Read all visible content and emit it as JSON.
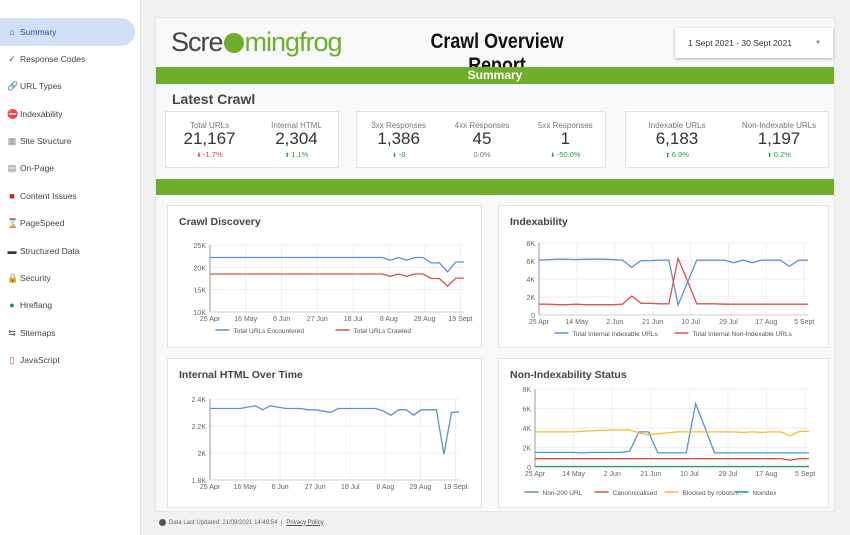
{
  "sidebar": {
    "items": [
      {
        "label": "Summary",
        "icon": "home-icon",
        "glyph": "⌂",
        "color": "#2a4f9e",
        "active": true
      },
      {
        "label": "Response Codes",
        "icon": "check-icon",
        "glyph": "✓",
        "color": "#555"
      },
      {
        "label": "URL Types",
        "icon": "link-icon",
        "glyph": "🔗",
        "color": "#333"
      },
      {
        "label": "Indexability",
        "icon": "no-entry-icon",
        "glyph": "⛔",
        "color": "#d33"
      },
      {
        "label": "Site Structure",
        "icon": "structure-icon",
        "glyph": "▦",
        "color": "#888"
      },
      {
        "label": "On-Page",
        "icon": "page-icon",
        "glyph": "▤",
        "color": "#777"
      },
      {
        "label": "Content Issues",
        "icon": "book-icon",
        "glyph": "■",
        "color": "#c22"
      },
      {
        "label": "PageSpeed",
        "icon": "hourglass-icon",
        "glyph": "⌛",
        "color": "#b55"
      },
      {
        "label": "Structured Data",
        "icon": "laptop-icon",
        "glyph": "▬",
        "color": "#333"
      },
      {
        "label": "Security",
        "icon": "lock-icon",
        "glyph": "🔒",
        "color": "#c90"
      },
      {
        "label": "Hreflang",
        "icon": "globe-icon",
        "glyph": "●",
        "color": "#1a8a6a"
      },
      {
        "label": "Sitemaps",
        "icon": "sitemap-icon",
        "glyph": "⇆",
        "color": "#666"
      },
      {
        "label": "JavaScript",
        "icon": "scroll-icon",
        "glyph": "▯",
        "color": "#a55"
      }
    ]
  },
  "header": {
    "logo": "Screamingfrog",
    "title": "Crawl Overview Report",
    "date_range": "1 Sept 2021 - 30 Sept 2021"
  },
  "summary_bar": "Summary",
  "latest_crawl": {
    "heading": "Latest Crawl",
    "groups": [
      [
        {
          "label": "Total URLs",
          "value": "21,167",
          "delta": "-1.7%",
          "dir": "down"
        },
        {
          "label": "Internal HTML",
          "value": "2,304",
          "delta": "1.1%",
          "dir": "up"
        }
      ],
      [
        {
          "label": "3xx Responses",
          "value": "1,386",
          "delta": "-8",
          "dir": "down-good"
        },
        {
          "label": "4xx Responses",
          "value": "45",
          "delta": "0.0%",
          "dir": "flat"
        },
        {
          "label": "5xx Responses",
          "value": "1",
          "delta": "-50.0%",
          "dir": "down-good"
        }
      ],
      [
        {
          "label": "Indexable URLs",
          "value": "6,183",
          "delta": "6.9%",
          "dir": "up"
        },
        {
          "label": "Non-Indexable URLs",
          "value": "1,197",
          "delta": "0.2%",
          "dir": "up"
        }
      ]
    ]
  },
  "colors": {
    "green": "#6fae2b",
    "blue": "#5b8fd6",
    "red": "#d9534f",
    "yellow": "#f2bf2e",
    "teal": "#1e9e6e"
  },
  "chart_data": [
    {
      "title": "Crawl Discovery",
      "type": "line",
      "ylim": [
        10000,
        25000
      ],
      "y_ticks": [
        "10K",
        "15K",
        "20K",
        "25K"
      ],
      "x_ticks": [
        "25 Apr",
        "16 May",
        "6 Jun",
        "27 Jun",
        "18 Jul",
        "8 Aug",
        "29 Aug",
        "19 Sept"
      ],
      "series": [
        {
          "name": "Total URLs Encountered",
          "color": "#5b8fd6",
          "values": [
            22200,
            22200,
            22200,
            22200,
            22200,
            22200,
            22200,
            22200,
            22200,
            22200,
            22200,
            22200,
            22200,
            22200,
            22200,
            22200,
            22200,
            22200,
            22200,
            22200,
            22200,
            22200,
            21600,
            22200,
            21600,
            22200,
            22200,
            21000,
            21000,
            19000,
            21200,
            21200
          ]
        },
        {
          "name": "Total URLs Crawled",
          "color": "#d9534f",
          "values": [
            18500,
            18500,
            18500,
            18500,
            18500,
            18500,
            18500,
            18500,
            18500,
            18500,
            18500,
            18500,
            18500,
            18500,
            18500,
            18500,
            18500,
            18500,
            18500,
            18500,
            18500,
            18500,
            18000,
            18500,
            18000,
            18500,
            18500,
            17500,
            17500,
            15800,
            17600,
            17600
          ]
        }
      ]
    },
    {
      "title": "Indexability",
      "type": "line",
      "ylim": [
        0,
        8000
      ],
      "y_ticks": [
        "0",
        "2K",
        "4K",
        "6K",
        "8K"
      ],
      "x_ticks": [
        "25 Apr",
        "14 May",
        "2 Jun",
        "21 Jun",
        "10 Jul",
        "29 Jul",
        "17 Aug",
        "5 Sept"
      ],
      "series": [
        {
          "name": "Total Internal Indexable URLs",
          "color": "#5b8fd6",
          "values": [
            6100,
            6150,
            6200,
            6200,
            6150,
            6200,
            6200,
            6200,
            6150,
            6100,
            5300,
            6050,
            6050,
            6100,
            6100,
            1100,
            3600,
            6100,
            6100,
            6100,
            6100,
            5800,
            6100,
            5800,
            6100,
            6100,
            6100,
            5400,
            6100,
            6100
          ]
        },
        {
          "name": "Total Internal Non-Indexable URLs",
          "color": "#d9534f",
          "values": [
            1200,
            1200,
            1150,
            1150,
            1200,
            1150,
            1150,
            1150,
            1150,
            1200,
            2100,
            1300,
            1300,
            1250,
            1250,
            6300,
            3800,
            1250,
            1250,
            1250,
            1200,
            1200,
            1200,
            1200,
            1200,
            1200,
            1200,
            1200,
            1200,
            1200
          ]
        }
      ]
    },
    {
      "title": "Internal HTML Over Time",
      "type": "line",
      "ylim": [
        1800,
        2400
      ],
      "y_ticks": [
        "1.8K",
        "2K",
        "2.2K",
        "2.4K"
      ],
      "x_ticks": [
        "25 Apr",
        "16 May",
        "6 Jun",
        "27 Jun",
        "18 Jul",
        "8 Aug",
        "29 Aug",
        "19 Sept"
      ],
      "series": [
        {
          "name": "Internal HTML",
          "color": "#5b8fd6",
          "values": [
            2330,
            2330,
            2330,
            2330,
            2330,
            2340,
            2350,
            2320,
            2350,
            2340,
            2330,
            2330,
            2330,
            2320,
            2320,
            2310,
            2300,
            2330,
            2330,
            2330,
            2330,
            2330,
            2330,
            2310,
            2280,
            2320,
            2320,
            2280,
            2320,
            2320,
            2320,
            1990,
            2300,
            2305
          ]
        }
      ]
    },
    {
      "title": "Non-Indexability Status",
      "type": "line",
      "ylim": [
        0,
        8000
      ],
      "y_ticks": [
        "0",
        "2K",
        "4K",
        "6K",
        "8K"
      ],
      "x_ticks": [
        "25 Apr",
        "14 May",
        "2 Jun",
        "21 Jun",
        "10 Jul",
        "29 Jul",
        "17 Aug",
        "5 Sept"
      ],
      "series": [
        {
          "name": "Non-200 URL",
          "color": "#5b8fd6",
          "values": [
            1500,
            1500,
            1500,
            1500,
            1500,
            1450,
            1500,
            1500,
            1500,
            1500,
            1600,
            3600,
            3600,
            1450,
            1450,
            1450,
            1450,
            6500,
            4000,
            1450,
            1450,
            1450,
            1450,
            1450,
            1450,
            1450,
            1450,
            1450,
            1450,
            1450
          ]
        },
        {
          "name": "Canonnicalised",
          "color": "#d9534f",
          "values": [
            850,
            850,
            850,
            850,
            850,
            850,
            850,
            850,
            850,
            850,
            850,
            850,
            850,
            850,
            850,
            850,
            850,
            850,
            850,
            850,
            850,
            850,
            850,
            850,
            850,
            850,
            850,
            700,
            850,
            850
          ]
        },
        {
          "name": "Blocked by robots.t...",
          "color": "#f2bf2e",
          "values": [
            3600,
            3600,
            3600,
            3600,
            3600,
            3650,
            3700,
            3750,
            3800,
            3800,
            3800,
            3500,
            3300,
            3400,
            3500,
            3600,
            3600,
            3600,
            3600,
            3600,
            3600,
            3600,
            3550,
            3600,
            3550,
            3600,
            3600,
            3200,
            3650,
            3650
          ]
        },
        {
          "name": "Noindex",
          "color": "#1e9e6e",
          "values": [
            50,
            50,
            50,
            50,
            50,
            50,
            50,
            50,
            50,
            50,
            50,
            50,
            50,
            50,
            50,
            50,
            50,
            50,
            50,
            50,
            50,
            50,
            50,
            50,
            50,
            50,
            50,
            50,
            50,
            50
          ]
        }
      ]
    }
  ],
  "footer": {
    "updated": "Data Last Updated: 21/09/2021 14:49:54",
    "privacy": "Privacy Policy"
  }
}
